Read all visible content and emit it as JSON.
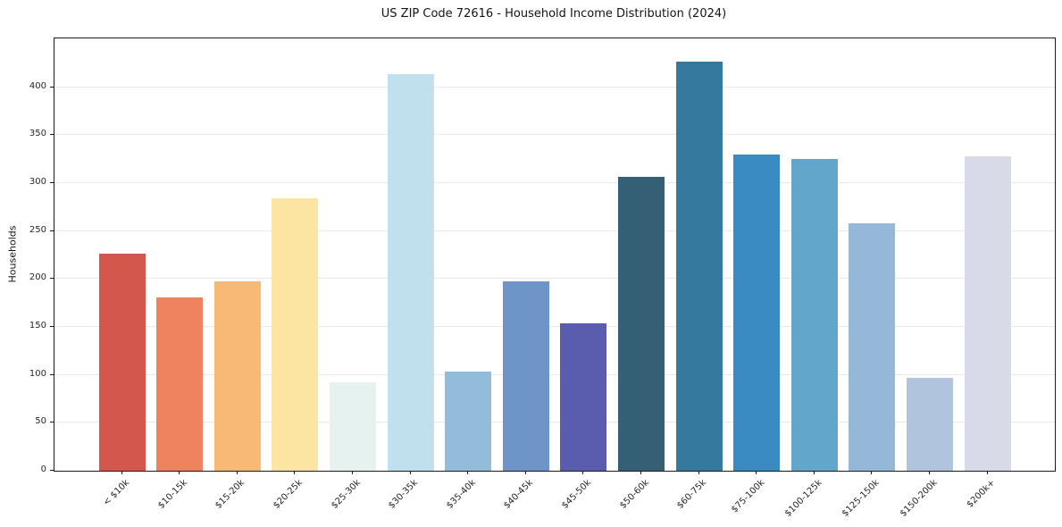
{
  "chart_data": {
    "type": "bar",
    "title": "US ZIP Code 72616 - Household Income Distribution (2024)",
    "xlabel": "",
    "ylabel": "Households",
    "categories": [
      "< $10k",
      "$10-15k",
      "$15-20k",
      "$20-25k",
      "$25-30k",
      "$30-35k",
      "$35-40k",
      "$40-45k",
      "$45-50k",
      "$50-60k",
      "$60-75k",
      "$75-100k",
      "$100-125k",
      "$125-150k",
      "$150-200k",
      "$200k+"
    ],
    "values": [
      226,
      181,
      198,
      284,
      92,
      414,
      103,
      198,
      154,
      307,
      427,
      330,
      325,
      258,
      97,
      328
    ],
    "bar_colors": [
      "#d4574e",
      "#f0835f",
      "#f8b976",
      "#fce4a2",
      "#e6f2ef",
      "#bfe0ec",
      "#92bcd9",
      "#6e94c8",
      "#5a5cae",
      "#355f75",
      "#35799f",
      "#398bc2",
      "#62a6cc",
      "#95b8d8",
      "#b0c4de",
      "#d8dae8"
    ],
    "yticks": [
      0,
      50,
      100,
      150,
      200,
      250,
      300,
      350,
      400
    ],
    "ylim": [
      0,
      451
    ],
    "grid": "horizontal",
    "grid_color": "#e9e9e9",
    "axis_color": "#1a1a1a",
    "background_color": "#ffffff",
    "legend_position": "none"
  }
}
